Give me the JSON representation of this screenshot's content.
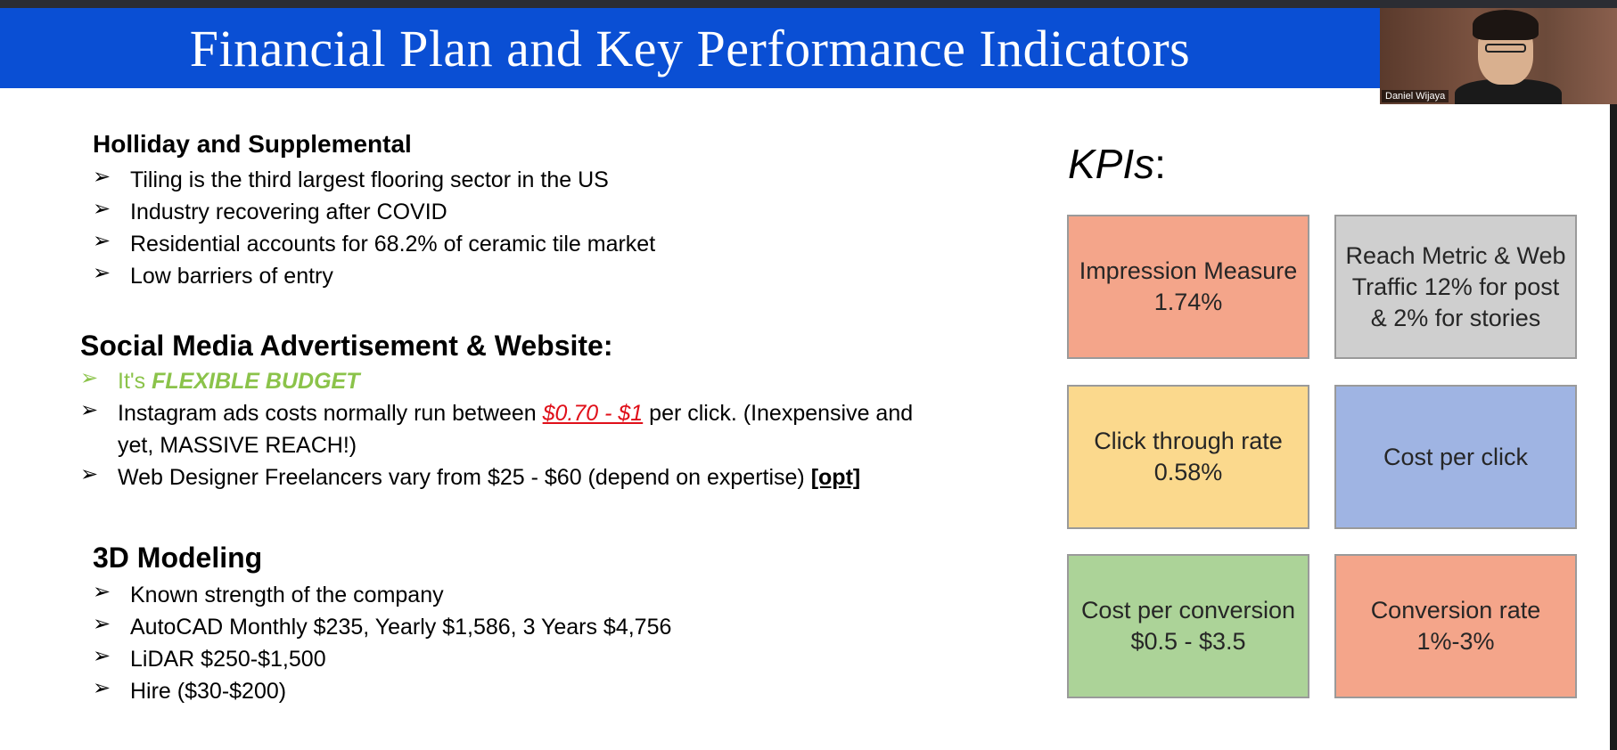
{
  "slide": {
    "title": "Financial Plan and Key Performance Indicators"
  },
  "video": {
    "participant_name": "Daniel Wijaya"
  },
  "sections": {
    "holiday": {
      "heading": "Holliday and Supplemental",
      "items": [
        "Tiling is the third largest flooring sector in the US",
        "Industry recovering after COVID",
        "Residential accounts for 68.2% of ceramic tile market",
        "Low barriers of entry"
      ]
    },
    "social": {
      "heading": "Social Media Advertisement & Website:",
      "flexible_prefix": "It's ",
      "flexible_emph": "FLEXIBLE BUDGET",
      "instagram_prefix": "Instagram ads costs normally run between ",
      "instagram_price": "$0.70 - $1",
      "instagram_line1_suffix": " per click. (Inexpensive and",
      "instagram_line2": "yet, MASSIVE REACH!)",
      "web_designer": "Web Designer Freelancers vary from $25 - $60 (depend on expertise) ",
      "web_designer_opt": "[opt]"
    },
    "modeling": {
      "heading": "3D Modeling",
      "items": [
        "Known strength of the company",
        "AutoCAD Monthly $235, Yearly $1,586, 3 Years $4,756",
        "LiDAR $250-$1,500",
        "Hire ($30-$200)"
      ]
    }
  },
  "kpis": {
    "title_word": "KPIs",
    "title_colon": ":",
    "boxes": [
      {
        "label": "Impression Measure 1.74%",
        "color": "#f4a58a"
      },
      {
        "label": "Reach Metric & Web Traffic 12% for post & 2% for stories",
        "color": "#cfcfcf"
      },
      {
        "label": "Click through rate 0.58%",
        "color": "#fbd98d"
      },
      {
        "label": "Cost per click",
        "color": "#9fb4e3"
      },
      {
        "label": "Cost per conversion $0.5 - $3.5",
        "color": "#acd398"
      },
      {
        "label": "Conversion rate 1%-3%",
        "color": "#f4a58a"
      }
    ]
  },
  "colors": {
    "title_bar": "#0a4fd4",
    "flexible_green": "#8bc34a",
    "price_red": "#e0101a"
  }
}
